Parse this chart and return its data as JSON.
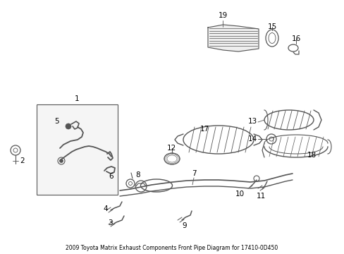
{
  "title": "2009 Toyota Matrix Exhaust Components Front Pipe Diagram for 17410-0D450",
  "background_color": "#ffffff",
  "line_color": "#555555",
  "text_color": "#000000",
  "fig_width": 4.89,
  "fig_height": 3.6,
  "dpi": 100
}
